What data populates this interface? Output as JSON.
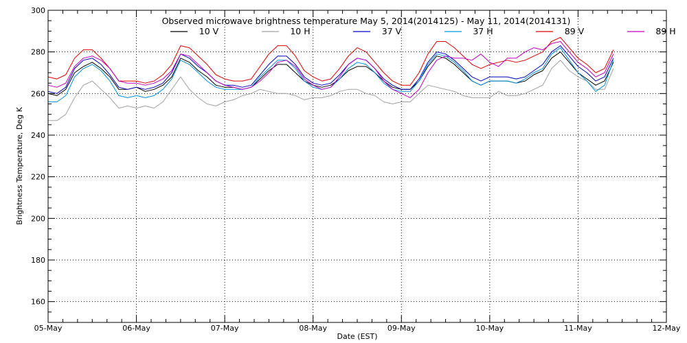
{
  "chart_data": {
    "type": "line",
    "title": "Observed microwave brightness temperature May  5, 2014(2014125) - May 11, 2014(2014131)",
    "xlabel": "Date (EST)",
    "ylabel": "Brightness Temperature, Deg K",
    "xlim": [
      0,
      7
    ],
    "ylim": [
      150,
      300
    ],
    "x_ticks": [
      {
        "value": 0,
        "label": "05-May"
      },
      {
        "value": 1,
        "label": "06-May"
      },
      {
        "value": 2,
        "label": "07-May"
      },
      {
        "value": 3,
        "label": "08-May"
      },
      {
        "value": 4,
        "label": "09-May"
      },
      {
        "value": 5,
        "label": "10-May"
      },
      {
        "value": 6,
        "label": "11-May"
      },
      {
        "value": 7,
        "label": "12-May"
      }
    ],
    "y_ticks": [
      {
        "value": 160,
        "label": "160"
      },
      {
        "value": 180,
        "label": "180"
      },
      {
        "value": 200,
        "label": "200"
      },
      {
        "value": 220,
        "label": "220"
      },
      {
        "value": 240,
        "label": "240"
      },
      {
        "value": 260,
        "label": "260"
      },
      {
        "value": 280,
        "label": "280"
      },
      {
        "value": 300,
        "label": "300"
      }
    ],
    "grid": true,
    "legend_position": "top",
    "series": [
      {
        "name": "10 V",
        "color": "#000000",
        "x": [
          0,
          0.1,
          0.2,
          0.3,
          0.4,
          0.5,
          0.6,
          0.7,
          0.8,
          0.9,
          1.0,
          1.1,
          1.2,
          1.3,
          1.4,
          1.5,
          1.6,
          1.7,
          1.8,
          1.9,
          2.0,
          2.1,
          2.2,
          2.3,
          2.4,
          2.5,
          2.6,
          2.7,
          2.8,
          2.9,
          3.0,
          3.1,
          3.2,
          3.3,
          3.4,
          3.5,
          3.6,
          3.7,
          3.8,
          3.9,
          4.0,
          4.1,
          4.2,
          4.3,
          4.4,
          4.5,
          4.6,
          4.7,
          4.8,
          4.9,
          5.0,
          5.1,
          5.2,
          5.3,
          5.4,
          5.5,
          5.6,
          5.7,
          5.8,
          5.9,
          6.0,
          6.1,
          6.2,
          6.3,
          6.4
        ],
        "y": [
          260,
          259,
          262,
          270,
          273,
          275,
          272,
          268,
          262,
          262,
          263,
          261,
          262,
          264,
          268,
          277,
          275,
          271,
          268,
          264,
          263,
          263,
          262,
          263,
          267,
          271,
          274,
          274,
          270,
          266,
          264,
          263,
          264,
          267,
          271,
          273,
          273,
          270,
          266,
          263,
          262,
          262,
          266,
          273,
          278,
          277,
          274,
          270,
          266,
          264,
          266,
          266,
          266,
          265,
          266,
          269,
          271,
          277,
          280,
          275,
          270,
          267,
          264,
          266,
          275
        ]
      },
      {
        "name": "10 H",
        "color": "#a0a0a0",
        "x": [
          0,
          0.1,
          0.2,
          0.3,
          0.4,
          0.5,
          0.6,
          0.7,
          0.8,
          0.9,
          1.0,
          1.1,
          1.2,
          1.3,
          1.4,
          1.5,
          1.6,
          1.7,
          1.8,
          1.9,
          2.0,
          2.1,
          2.2,
          2.3,
          2.4,
          2.5,
          2.6,
          2.7,
          2.8,
          2.9,
          3.0,
          3.1,
          3.2,
          3.3,
          3.4,
          3.5,
          3.6,
          3.7,
          3.8,
          3.9,
          4.0,
          4.1,
          4.2,
          4.3,
          4.4,
          4.5,
          4.6,
          4.7,
          4.8,
          4.9,
          5.0,
          5.1,
          5.2,
          5.3,
          5.4,
          5.5,
          5.6,
          5.7,
          5.8,
          5.9,
          6.0,
          6.1,
          6.2,
          6.3,
          6.4
        ],
        "y": [
          247,
          247,
          250,
          258,
          264,
          266,
          262,
          258,
          253,
          254,
          253,
          254,
          253,
          256,
          262,
          268,
          262,
          258,
          255,
          254,
          256,
          257,
          259,
          260,
          262,
          261,
          260,
          260,
          259,
          257,
          258,
          258,
          259,
          261,
          262,
          262,
          260,
          259,
          256,
          255,
          256,
          256,
          260,
          264,
          263,
          262,
          261,
          259,
          258,
          258,
          258,
          261,
          259,
          259,
          260,
          262,
          264,
          272,
          276,
          271,
          268,
          266,
          262,
          262,
          272
        ]
      },
      {
        "name": "37 V",
        "color": "#0000c0",
        "x": [
          0,
          0.1,
          0.2,
          0.3,
          0.4,
          0.5,
          0.6,
          0.7,
          0.8,
          0.9,
          1.0,
          1.1,
          1.2,
          1.3,
          1.4,
          1.5,
          1.6,
          1.7,
          1.8,
          1.9,
          2.0,
          2.1,
          2.2,
          2.3,
          2.4,
          2.5,
          2.6,
          2.7,
          2.8,
          2.9,
          3.0,
          3.1,
          3.2,
          3.3,
          3.4,
          3.5,
          3.6,
          3.7,
          3.8,
          3.9,
          4.0,
          4.1,
          4.2,
          4.3,
          4.4,
          4.5,
          4.6,
          4.7,
          4.8,
          4.9,
          5.0,
          5.1,
          5.2,
          5.3,
          5.4,
          5.5,
          5.6,
          5.7,
          5.8,
          5.9,
          6.0,
          6.1,
          6.2,
          6.3,
          6.4
        ],
        "y": [
          261,
          260,
          263,
          272,
          276,
          277,
          274,
          269,
          263,
          262,
          263,
          262,
          263,
          265,
          270,
          279,
          277,
          273,
          270,
          266,
          264,
          264,
          263,
          264,
          269,
          274,
          278,
          278,
          274,
          268,
          265,
          264,
          265,
          269,
          274,
          277,
          276,
          272,
          267,
          264,
          262,
          262,
          267,
          275,
          280,
          279,
          276,
          272,
          268,
          266,
          268,
          268,
          268,
          267,
          268,
          271,
          274,
          280,
          283,
          278,
          273,
          270,
          266,
          268,
          277
        ]
      },
      {
        "name": "37 H",
        "color": "#0090e0",
        "x": [
          0,
          0.1,
          0.2,
          0.3,
          0.4,
          0.5,
          0.6,
          0.7,
          0.8,
          0.9,
          1.0,
          1.1,
          1.2,
          1.3,
          1.4,
          1.5,
          1.6,
          1.7,
          1.8,
          1.9,
          2.0,
          2.1,
          2.2,
          2.3,
          2.4,
          2.5,
          2.6,
          2.7,
          2.8,
          2.9,
          3.0,
          3.1,
          3.2,
          3.3,
          3.4,
          3.5,
          3.6,
          3.7,
          3.8,
          3.9,
          4.0,
          4.1,
          4.2,
          4.3,
          4.4,
          4.5,
          4.6,
          4.7,
          4.8,
          4.9,
          5.0,
          5.1,
          5.2,
          5.3,
          5.4,
          5.5,
          5.6,
          5.7,
          5.8,
          5.9,
          6.0,
          6.1,
          6.2,
          6.3,
          6.4
        ],
        "y": [
          256,
          256,
          259,
          268,
          272,
          274,
          271,
          266,
          259,
          258,
          259,
          258,
          259,
          262,
          267,
          276,
          274,
          270,
          266,
          263,
          262,
          262,
          262,
          263,
          268,
          272,
          276,
          276,
          272,
          266,
          263,
          262,
          263,
          267,
          272,
          275,
          274,
          270,
          265,
          262,
          261,
          261,
          266,
          274,
          279,
          278,
          275,
          271,
          266,
          264,
          266,
          266,
          266,
          265,
          267,
          270,
          272,
          279,
          282,
          276,
          270,
          266,
          261,
          264,
          276
        ]
      },
      {
        "name": "89 V",
        "color": "#e00000",
        "x": [
          0,
          0.1,
          0.2,
          0.3,
          0.4,
          0.5,
          0.6,
          0.7,
          0.8,
          0.9,
          1.0,
          1.1,
          1.2,
          1.3,
          1.4,
          1.5,
          1.6,
          1.7,
          1.8,
          1.9,
          2.0,
          2.1,
          2.2,
          2.3,
          2.4,
          2.5,
          2.6,
          2.7,
          2.8,
          2.9,
          3.0,
          3.1,
          3.2,
          3.3,
          3.4,
          3.5,
          3.6,
          3.7,
          3.8,
          3.9,
          4.0,
          4.1,
          4.2,
          4.3,
          4.4,
          4.5,
          4.6,
          4.7,
          4.8,
          4.9,
          5.0,
          5.1,
          5.2,
          5.3,
          5.4,
          5.5,
          5.6,
          5.7,
          5.8,
          5.9,
          6.0,
          6.1,
          6.2,
          6.3,
          6.4
        ],
        "y": [
          268,
          267,
          269,
          277,
          281,
          281,
          277,
          272,
          266,
          266,
          266,
          265,
          266,
          269,
          274,
          283,
          282,
          278,
          274,
          269,
          267,
          266,
          266,
          267,
          273,
          279,
          283,
          283,
          278,
          271,
          268,
          266,
          267,
          272,
          278,
          282,
          280,
          275,
          270,
          266,
          264,
          264,
          270,
          279,
          285,
          285,
          282,
          278,
          274,
          272,
          274,
          275,
          276,
          275,
          276,
          278,
          280,
          285,
          287,
          282,
          277,
          274,
          270,
          272,
          281
        ]
      },
      {
        "name": "89 H",
        "color": "#c000c0",
        "x": [
          0,
          0.1,
          0.2,
          0.3,
          0.4,
          0.5,
          0.6,
          0.7,
          0.8,
          0.9,
          1.0,
          1.1,
          1.2,
          1.3,
          1.4,
          1.5,
          1.6,
          1.7,
          1.8,
          1.9,
          2.0,
          2.1,
          2.2,
          2.3,
          2.4,
          2.5,
          2.6,
          2.7,
          2.8,
          2.9,
          3.0,
          3.1,
          3.2,
          3.3,
          3.4,
          3.5,
          3.6,
          3.7,
          3.8,
          3.9,
          4.0,
          4.1,
          4.2,
          4.3,
          4.4,
          4.5,
          4.6,
          4.7,
          4.8,
          4.9,
          5.0,
          5.1,
          5.2,
          5.3,
          5.4,
          5.5,
          5.6,
          5.7,
          5.8,
          5.9,
          6.0,
          6.1,
          6.2,
          6.3,
          6.4
        ],
        "y": [
          264,
          263,
          265,
          273,
          277,
          278,
          276,
          272,
          266,
          265,
          265,
          264,
          265,
          267,
          271,
          279,
          278,
          274,
          270,
          266,
          264,
          263,
          262,
          263,
          266,
          270,
          275,
          276,
          273,
          267,
          264,
          262,
          263,
          268,
          274,
          277,
          276,
          272,
          266,
          262,
          260,
          258,
          262,
          270,
          276,
          278,
          277,
          277,
          276,
          279,
          275,
          273,
          277,
          277,
          280,
          282,
          281,
          284,
          285,
          280,
          275,
          272,
          268,
          270,
          279
        ]
      }
    ]
  }
}
